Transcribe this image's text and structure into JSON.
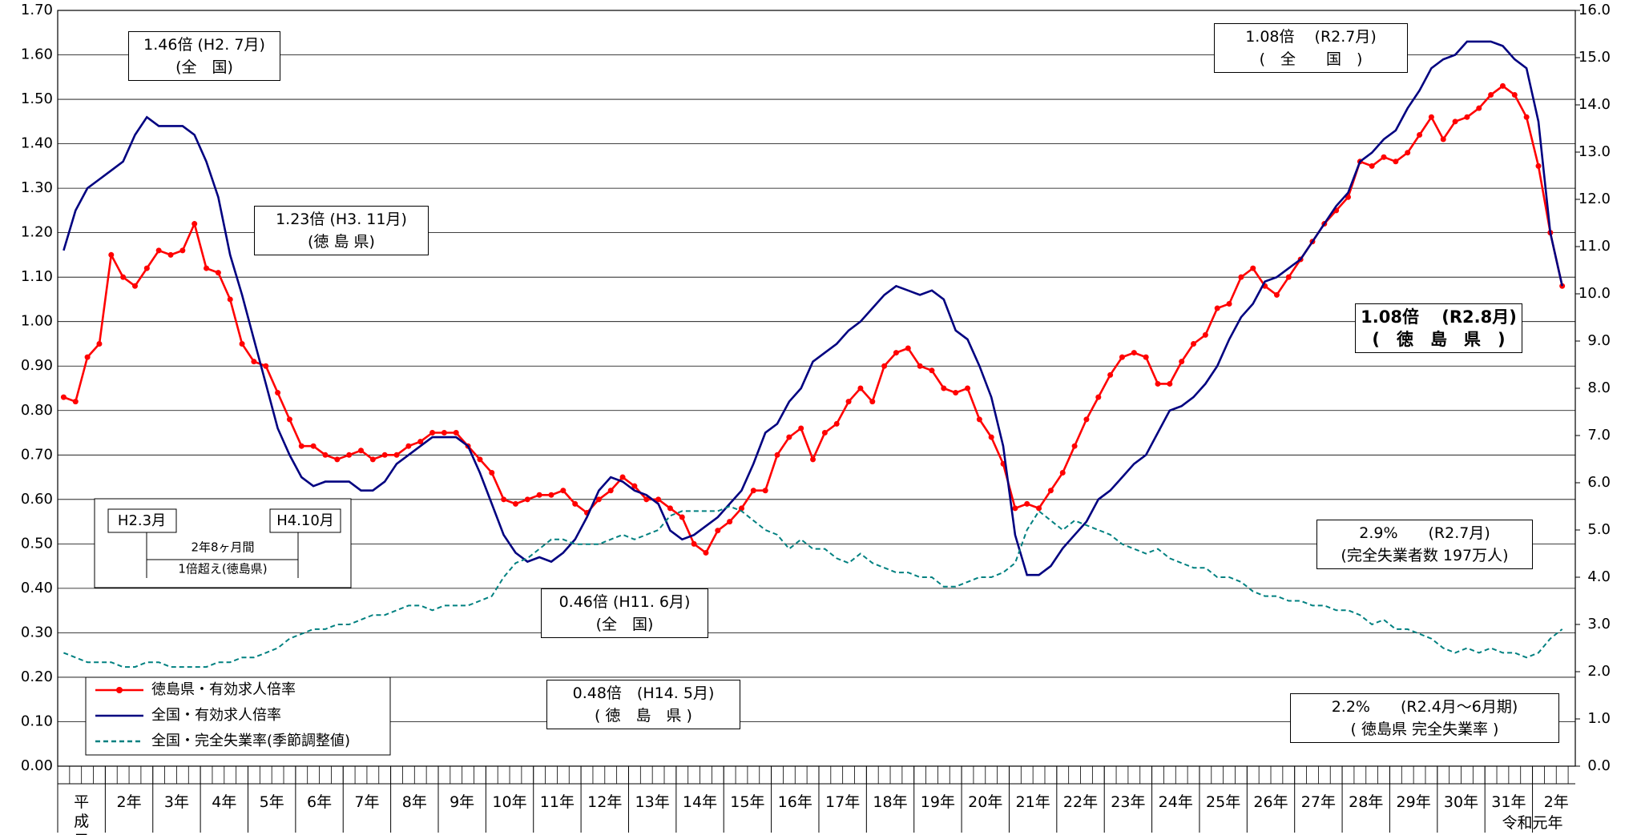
{
  "chart_data": {
    "type": "line",
    "categories": [
      "平成元年",
      null,
      null,
      null,
      "2年",
      null,
      null,
      null,
      "3年",
      null,
      null,
      null,
      "4年",
      null,
      null,
      null,
      "5年",
      null,
      null,
      null,
      "6年",
      null,
      null,
      null,
      "7年",
      null,
      null,
      null,
      "8年",
      null,
      null,
      null,
      "9年",
      null,
      null,
      null,
      "10年",
      null,
      null,
      null,
      "11年",
      null,
      null,
      null,
      "12年",
      null,
      null,
      null,
      "13年",
      null,
      null,
      null,
      "14年",
      null,
      null,
      null,
      "15年",
      null,
      null,
      null,
      "16年",
      null,
      null,
      null,
      "17年",
      null,
      null,
      null,
      "18年",
      null,
      null,
      null,
      "19年",
      null,
      null,
      null,
      "20年",
      null,
      null,
      null,
      "21年",
      null,
      null,
      null,
      "22年",
      null,
      null,
      null,
      "23年",
      null,
      null,
      null,
      "24年",
      null,
      null,
      null,
      "25年",
      null,
      null,
      null,
      "26年",
      null,
      null,
      null,
      "27年",
      null,
      null,
      null,
      "28年",
      null,
      null,
      null,
      "29年",
      null,
      null,
      null,
      "30年",
      null,
      null,
      null,
      "31年",
      null,
      null,
      null,
      "2年",
      null,
      null
    ],
    "era_note": "令和元年",
    "series": [
      {
        "name": "徳島県・有効求人倍率",
        "color": "#ff0000",
        "marker": true,
        "values": [
          0.83,
          0.82,
          0.92,
          0.95,
          1.15,
          1.1,
          1.08,
          1.12,
          1.16,
          1.15,
          1.16,
          1.22,
          1.12,
          1.11,
          1.05,
          0.95,
          0.91,
          0.9,
          0.84,
          0.78,
          0.72,
          0.72,
          0.7,
          0.69,
          0.7,
          0.71,
          0.69,
          0.7,
          0.7,
          0.72,
          0.73,
          0.75,
          0.75,
          0.75,
          0.72,
          0.69,
          0.66,
          0.6,
          0.59,
          0.6,
          0.61,
          0.61,
          0.62,
          0.59,
          0.57,
          0.6,
          0.62,
          0.65,
          0.63,
          0.6,
          0.6,
          0.58,
          0.56,
          0.5,
          0.48,
          0.53,
          0.55,
          0.58,
          0.62,
          0.62,
          0.7,
          0.74,
          0.76,
          0.69,
          0.75,
          0.77,
          0.82,
          0.85,
          0.82,
          0.9,
          0.93,
          0.94,
          0.9,
          0.89,
          0.85,
          0.84,
          0.85,
          0.78,
          0.74,
          0.68,
          0.58,
          0.59,
          0.58,
          0.62,
          0.66,
          0.72,
          0.78,
          0.83,
          0.88,
          0.92,
          0.93,
          0.92,
          0.86,
          0.86,
          0.91,
          0.95,
          0.97,
          1.03,
          1.04,
          1.1,
          1.12,
          1.08,
          1.06,
          1.1,
          1.14,
          1.18,
          1.22,
          1.25,
          1.28,
          1.36,
          1.35,
          1.37,
          1.36,
          1.38,
          1.42,
          1.46,
          1.41,
          1.45,
          1.46,
          1.48,
          1.51,
          1.53,
          1.51,
          1.46,
          1.35,
          1.2,
          1.08
        ]
      },
      {
        "name": "全国・有効求人倍率",
        "color": "#000080",
        "marker": false,
        "values": [
          1.16,
          1.25,
          1.3,
          1.32,
          1.34,
          1.36,
          1.42,
          1.46,
          1.44,
          1.44,
          1.44,
          1.42,
          1.36,
          1.28,
          1.15,
          1.06,
          0.96,
          0.86,
          0.76,
          0.7,
          0.65,
          0.63,
          0.64,
          0.64,
          0.64,
          0.62,
          0.62,
          0.64,
          0.68,
          0.7,
          0.72,
          0.74,
          0.74,
          0.74,
          0.72,
          0.66,
          0.59,
          0.52,
          0.48,
          0.46,
          0.47,
          0.46,
          0.48,
          0.51,
          0.56,
          0.62,
          0.65,
          0.64,
          0.62,
          0.61,
          0.59,
          0.53,
          0.51,
          0.52,
          0.54,
          0.56,
          0.59,
          0.62,
          0.68,
          0.75,
          0.77,
          0.82,
          0.85,
          0.91,
          0.93,
          0.95,
          0.98,
          1.0,
          1.03,
          1.06,
          1.08,
          1.07,
          1.06,
          1.07,
          1.05,
          0.98,
          0.96,
          0.9,
          0.83,
          0.72,
          0.52,
          0.43,
          0.43,
          0.45,
          0.49,
          0.52,
          0.55,
          0.6,
          0.62,
          0.65,
          0.68,
          0.7,
          0.75,
          0.8,
          0.81,
          0.83,
          0.86,
          0.9,
          0.96,
          1.01,
          1.04,
          1.09,
          1.1,
          1.12,
          1.14,
          1.18,
          1.22,
          1.26,
          1.29,
          1.36,
          1.38,
          1.41,
          1.43,
          1.48,
          1.52,
          1.57,
          1.59,
          1.6,
          1.63,
          1.63,
          1.63,
          1.62,
          1.59,
          1.57,
          1.45,
          1.2,
          1.08
        ]
      },
      {
        "name": "全国・完全失業率(季節調整値)",
        "color": "#008080",
        "marker": false,
        "dashed": true,
        "axis": "y2",
        "values": [
          2.4,
          2.3,
          2.2,
          2.2,
          2.2,
          2.1,
          2.1,
          2.2,
          2.2,
          2.1,
          2.1,
          2.1,
          2.1,
          2.2,
          2.2,
          2.3,
          2.3,
          2.4,
          2.5,
          2.7,
          2.8,
          2.9,
          2.9,
          3.0,
          3.0,
          3.1,
          3.2,
          3.2,
          3.3,
          3.4,
          3.4,
          3.3,
          3.4,
          3.4,
          3.4,
          3.5,
          3.6,
          4.0,
          4.3,
          4.4,
          4.6,
          4.8,
          4.8,
          4.7,
          4.7,
          4.7,
          4.8,
          4.9,
          4.8,
          4.9,
          5.0,
          5.3,
          5.4,
          5.4,
          5.4,
          5.4,
          5.5,
          5.4,
          5.2,
          5.0,
          4.9,
          4.6,
          4.8,
          4.6,
          4.6,
          4.4,
          4.3,
          4.5,
          4.3,
          4.2,
          4.1,
          4.1,
          4.0,
          4.0,
          3.8,
          3.8,
          3.9,
          4.0,
          4.0,
          4.1,
          4.3,
          5.0,
          5.4,
          5.2,
          5.0,
          5.2,
          5.1,
          5.0,
          4.9,
          4.7,
          4.6,
          4.5,
          4.6,
          4.4,
          4.3,
          4.2,
          4.2,
          4.0,
          4.0,
          3.9,
          3.7,
          3.6,
          3.6,
          3.5,
          3.5,
          3.4,
          3.4,
          3.3,
          3.3,
          3.2,
          3.0,
          3.1,
          2.9,
          2.9,
          2.8,
          2.7,
          2.5,
          2.4,
          2.5,
          2.4,
          2.5,
          2.4,
          2.4,
          2.3,
          2.4,
          2.7,
          2.9
        ]
      }
    ],
    "ylim": [
      0,
      1.7
    ],
    "yticks": [
      {
        "value": 0,
        "label": "0.00"
      },
      {
        "value": 0.1,
        "label": "0.10"
      },
      {
        "value": 0.2,
        "label": "0.20"
      },
      {
        "value": 0.3,
        "label": "0.30"
      },
      {
        "value": 0.4,
        "label": "0.40"
      },
      {
        "value": 0.5,
        "label": "0.50"
      },
      {
        "value": 0.6,
        "label": "0.60"
      },
      {
        "value": 0.7,
        "label": "0.70"
      },
      {
        "value": 0.8,
        "label": "0.80"
      },
      {
        "value": 0.9,
        "label": "0.90"
      },
      {
        "value": 1.0,
        "label": "1.00"
      },
      {
        "value": 1.1,
        "label": "1.10"
      },
      {
        "value": 1.2,
        "label": "1.20"
      },
      {
        "value": 1.3,
        "label": "1.30"
      },
      {
        "value": 1.4,
        "label": "1.40"
      },
      {
        "value": 1.5,
        "label": "1.50"
      },
      {
        "value": 1.6,
        "label": "1.60"
      },
      {
        "value": 1.7,
        "label": "1.70"
      }
    ],
    "y2lim": [
      0,
      16
    ],
    "y2ticks": [
      {
        "value": 0,
        "label": "0.0"
      },
      {
        "value": 1,
        "label": "1.0"
      },
      {
        "value": 2,
        "label": "2.0"
      },
      {
        "value": 3,
        "label": "3.0"
      },
      {
        "value": 4,
        "label": "4.0"
      },
      {
        "value": 5,
        "label": "5.0"
      },
      {
        "value": 6,
        "label": "6.0"
      },
      {
        "value": 7,
        "label": "7.0"
      },
      {
        "value": 8,
        "label": "8.0"
      },
      {
        "value": 9,
        "label": "9.0"
      },
      {
        "value": 10,
        "label": "10.0"
      },
      {
        "value": 11,
        "label": "11.0"
      },
      {
        "value": 12,
        "label": "12.0"
      },
      {
        "value": 13,
        "label": "13.0"
      },
      {
        "value": 14,
        "label": "14.0"
      },
      {
        "value": 15,
        "label": "15.0"
      },
      {
        "value": 16,
        "label": "16.0"
      }
    ],
    "grid": true,
    "legend": "lower left",
    "annotations": [
      {
        "lines": [
          "1.46倍 (H2. 7月)",
          "(全　国)"
        ]
      },
      {
        "lines": [
          "1.23倍 (H3. 11月)",
          "(徳 島 県)"
        ]
      },
      {
        "lines": [
          "0.46倍 (H11. 6月)",
          "(全　国)"
        ]
      },
      {
        "lines": [
          "0.48倍　(H14. 5月)",
          "( 徳　島　県 )"
        ]
      },
      {
        "lines": [
          "1.08倍　 (R2.7月)",
          "(　全　　国　)"
        ]
      },
      {
        "lines": [
          "1.08倍　 (R2.8月)",
          "(　徳　島　県　)"
        ]
      },
      {
        "lines": [
          "2.9%　　(R2.7月)",
          "(完全失業者数 197万人)"
        ]
      },
      {
        "lines": [
          "2.2%　　(R2.4月～6月期)",
          "( 徳島県 完全失業率 )"
        ]
      }
    ],
    "period_box": {
      "start": "H2.3月",
      "end": "H4.10月",
      "duration": "2年8ヶ月間",
      "note": "1倍超え(徳島県)"
    }
  }
}
